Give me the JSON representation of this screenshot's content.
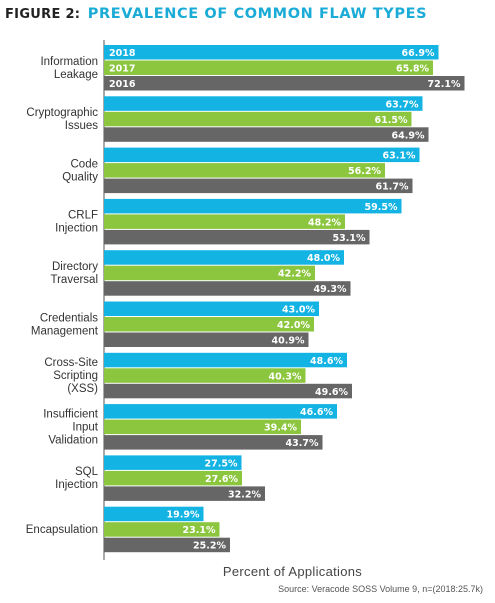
{
  "colors": {
    "title_accent": "#1aabd6",
    "s2018": "#13b3e3",
    "s2017": "#8cc63f",
    "s2016": "#666666"
  },
  "title": {
    "prefix": "FIGURE 2:",
    "main": "PREVALENCE OF COMMON FLAW TYPES"
  },
  "chart_data": {
    "type": "bar",
    "orientation": "horizontal",
    "title": "PREVALENCE OF COMMON FLAW TYPES",
    "xlabel": "Percent of Applications",
    "xlim": [
      0,
      80
    ],
    "grid": false,
    "legend": "inside first group bars",
    "categories": [
      [
        "Information",
        "Leakage"
      ],
      [
        "Cryptographic",
        "Issues"
      ],
      [
        "Code",
        "Quality"
      ],
      [
        "CRLF",
        "Injection"
      ],
      [
        "Directory",
        "Traversal"
      ],
      [
        "Credentials",
        "Management"
      ],
      [
        "Cross-Site",
        "Scripting",
        "(XSS)"
      ],
      [
        "Insufficient",
        "Input",
        "Validation"
      ],
      [
        "SQL",
        "Injection"
      ],
      [
        "Encapsulation"
      ]
    ],
    "series": [
      {
        "name": "2018",
        "values": [
          66.9,
          63.7,
          63.1,
          59.5,
          48.0,
          43.0,
          48.6,
          46.6,
          27.5,
          19.9
        ],
        "labels": [
          "66.9%",
          "63.7%",
          "63.1%",
          "59.5%",
          "48.0%",
          "43.0%",
          "48.6%",
          "46.6%",
          "27.5%",
          "19.9%"
        ]
      },
      {
        "name": "2017",
        "values": [
          65.8,
          61.5,
          56.2,
          48.2,
          42.2,
          42.0,
          40.3,
          39.4,
          27.6,
          23.1
        ],
        "labels": [
          "65.8%",
          "61.5%",
          "56.2%",
          "48.2%",
          "42.2%",
          "42.0%",
          "40.3%",
          "39.4%",
          "27.6%",
          "23.1%"
        ]
      },
      {
        "name": "2016",
        "values": [
          72.1,
          64.9,
          61.7,
          53.1,
          49.3,
          40.9,
          49.6,
          43.7,
          32.2,
          25.2
        ],
        "labels": [
          "72.1%",
          "64.9%",
          "61.7%",
          "53.1%",
          "49.3%",
          "40.9%",
          "49.6%",
          "43.7%",
          "32.2%",
          "25.2%"
        ]
      }
    ]
  },
  "source": "Source: Veracode SOSS Volume 9, n=(2018:25.7k)"
}
